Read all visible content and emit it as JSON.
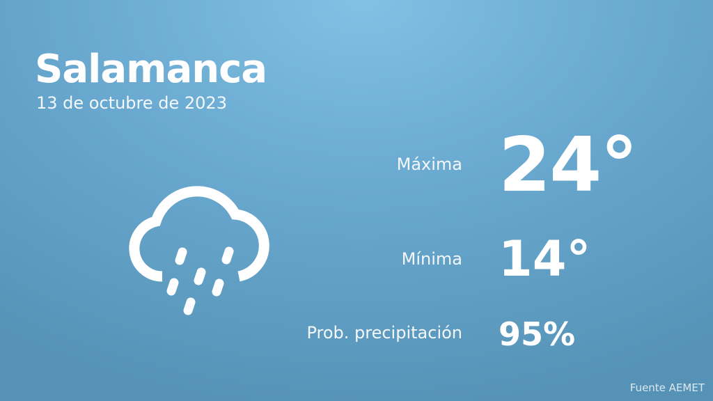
{
  "city": "Salamanca",
  "date": "13 de octubre de 2023",
  "weather": {
    "icon": "rain-cloud-icon",
    "max_label": "Máxima",
    "max_value": "24°",
    "min_label": "Mínima",
    "min_value": "14°",
    "prob_label": "Prob. precipitación",
    "prob_value": "95%"
  },
  "source": "Fuente AEMET"
}
